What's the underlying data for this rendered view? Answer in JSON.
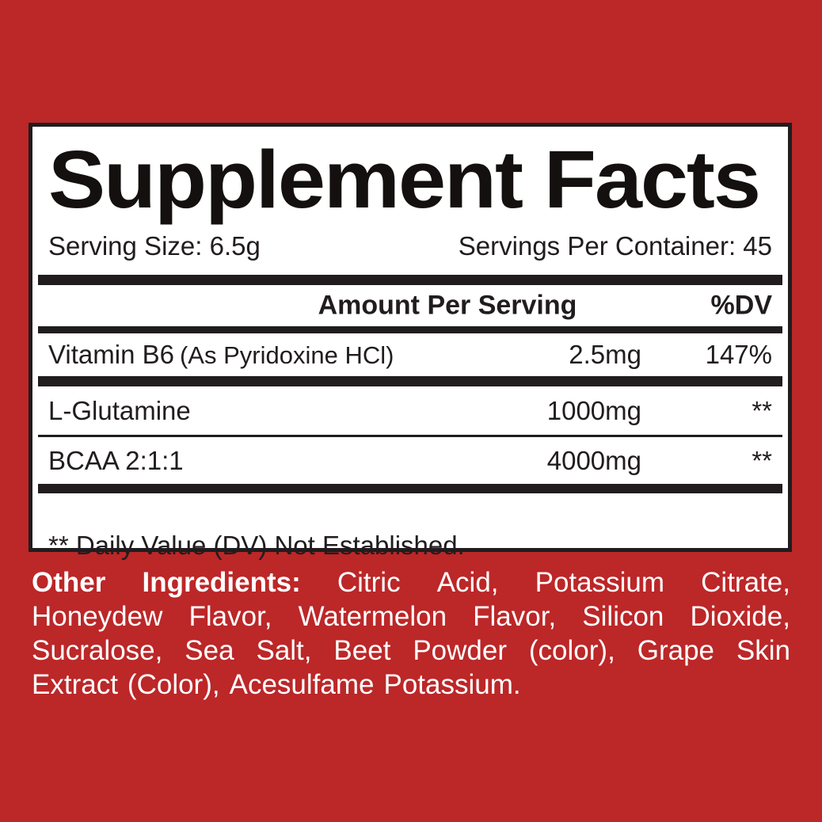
{
  "colors": {
    "background": "#bc2728",
    "panel_background": "#ffffff",
    "ink": "#211c1e",
    "text_on_background": "#ffffff"
  },
  "panel": {
    "title": "Supplement Facts",
    "serving_size": "Serving Size: 6.5g",
    "servings_per_container": "Servings Per Container: 45",
    "columns": {
      "amount_header": "Amount Per Serving",
      "dv_header": "%DV"
    },
    "rows": [
      {
        "name": "Vitamin B6",
        "note": "(As Pyridoxine HCl)",
        "amount": "2.5mg",
        "dv": "147%"
      },
      {
        "name": "L-Glutamine",
        "note": "",
        "amount": "1000mg",
        "dv": "**"
      },
      {
        "name": "BCAA 2:1:1",
        "note": "",
        "amount": "4000mg",
        "dv": "**"
      }
    ],
    "footnote": "** Daily Value (DV) Not Established."
  },
  "other_ingredients": {
    "lines": [
      {
        "words": [
          "Other",
          "Ingredients:",
          "Citric",
          "Acid,",
          "Potassium",
          "Citrate,"
        ],
        "bold_count": 2,
        "justify": true
      },
      {
        "words": [
          "Honeydew",
          "Flavor,",
          "Watermelon",
          "Flavor,",
          "Silicon",
          "Dioxide,"
        ],
        "bold_count": 0,
        "justify": true
      },
      {
        "words": [
          "Sucralose,",
          "Sea",
          "Salt,",
          "Beet",
          "Powder",
          "(color),",
          "Grape",
          "Skin"
        ],
        "bold_count": 0,
        "justify": true
      },
      {
        "words": [
          "Extract",
          "(Color),",
          "Acesulfame",
          "Potassium."
        ],
        "bold_count": 0,
        "justify": false
      }
    ]
  }
}
